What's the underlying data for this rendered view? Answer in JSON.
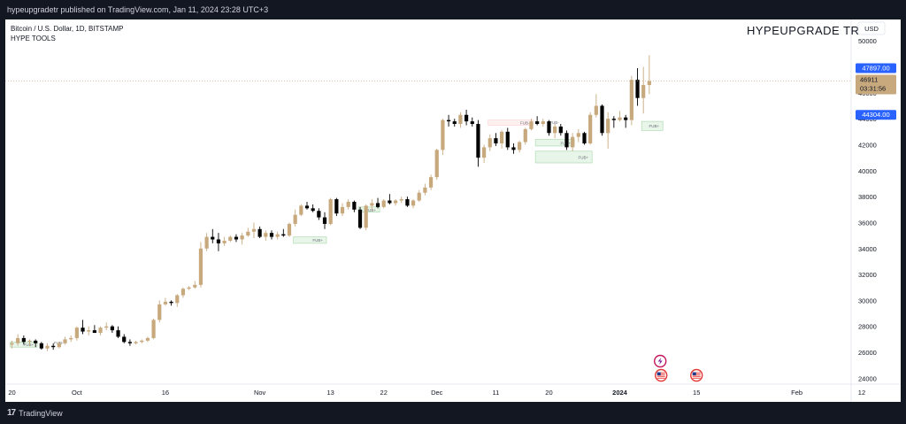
{
  "header": {
    "publish_line": "hypeupgradetr published on TradingView.com, Jan 11, 2024 23:28 UTC+3"
  },
  "legend": {
    "symbol_line": "Bitcoin / U.S. Dollar, 1D, BITSTAMP",
    "indicator_line": "HYPE TOOLS"
  },
  "watermark": "HYPEUPGRADE TR",
  "currency_button": "USD",
  "price_badges": {
    "high_label": "47897.00",
    "current_label": "46911",
    "countdown_label": "03:31:56",
    "low_label": "44304.00"
  },
  "footer": {
    "brand": "TradingView"
  },
  "colors": {
    "bull": "#c8a97e",
    "bear": "#000000",
    "accent_blue": "#2962ff",
    "current_price_bg": "#c8a97e",
    "fvg_fill": "#e8f5e9",
    "fvg_stroke": "#a5d6a7",
    "bearish_zone": "#ffcdd2"
  },
  "chart_data": {
    "type": "candlestick",
    "title": "Bitcoin / U.S. Dollar, 1D, BITSTAMP",
    "xlabel": "",
    "ylabel": "",
    "ylim": [
      23000,
      52000
    ],
    "y_ticks": [
      24000,
      26000,
      28000,
      30000,
      32000,
      34000,
      36000,
      38000,
      40000,
      42000,
      44000,
      46000,
      48000,
      50000
    ],
    "x_ticks": [
      {
        "day": 0,
        "label": "20"
      },
      {
        "day": 11,
        "label": "Oct"
      },
      {
        "day": 26,
        "label": "16"
      },
      {
        "day": 42,
        "label": "Nov"
      },
      {
        "day": 54,
        "label": "13"
      },
      {
        "day": 63,
        "label": "22"
      },
      {
        "day": 72,
        "label": "Dec"
      },
      {
        "day": 82,
        "label": "11"
      },
      {
        "day": 91,
        "label": "20"
      },
      {
        "day": 103,
        "label": "2024"
      },
      {
        "day": 116,
        "label": "15"
      },
      {
        "day": 133,
        "label": "Feb"
      },
      {
        "day": 144,
        "label": "12"
      }
    ],
    "x_tick_bold": "2024",
    "candles": [
      [
        26600,
        26900,
        26300,
        26700
      ],
      [
        26700,
        27400,
        26500,
        27100
      ],
      [
        27100,
        27300,
        26600,
        26800
      ],
      [
        26800,
        27000,
        26500,
        26900
      ],
      [
        26900,
        27000,
        26400,
        26700
      ],
      [
        26700,
        26800,
        26200,
        26300
      ],
      [
        26300,
        26700,
        26100,
        26500
      ],
      [
        26500,
        26700,
        26200,
        26400
      ],
      [
        26400,
        26800,
        26300,
        26700
      ],
      [
        26700,
        27200,
        26600,
        27000
      ],
      [
        27000,
        27300,
        26800,
        27100
      ],
      [
        27100,
        28000,
        26900,
        27900
      ],
      [
        27900,
        28500,
        27400,
        27600
      ],
      [
        27600,
        28000,
        27300,
        27700
      ],
      [
        27700,
        28100,
        27500,
        27500
      ],
      [
        27500,
        28000,
        27300,
        27900
      ],
      [
        27900,
        28300,
        27700,
        28000
      ],
      [
        28000,
        28100,
        27500,
        27700
      ],
      [
        27700,
        28000,
        27100,
        27200
      ],
      [
        27200,
        27400,
        26700,
        26800
      ],
      [
        26800,
        27000,
        26500,
        26700
      ],
      [
        26700,
        26900,
        26600,
        26800
      ],
      [
        26800,
        27000,
        26700,
        26900
      ],
      [
        26900,
        27200,
        26800,
        27100
      ],
      [
        27100,
        28600,
        27000,
        28500
      ],
      [
        28500,
        30000,
        28300,
        29700
      ],
      [
        29700,
        30200,
        29600,
        29900
      ],
      [
        29900,
        30000,
        29600,
        29800
      ],
      [
        29800,
        30500,
        29500,
        30400
      ],
      [
        30400,
        31000,
        30200,
        30900
      ],
      [
        30900,
        31100,
        30800,
        31000
      ],
      [
        31000,
        31500,
        30900,
        31200
      ],
      [
        31200,
        34500,
        31000,
        34000
      ],
      [
        34000,
        35200,
        33800,
        34900
      ],
      [
        34900,
        35500,
        34400,
        34700
      ],
      [
        34700,
        35200,
        33800,
        34400
      ],
      [
        34400,
        34900,
        34200,
        34600
      ],
      [
        34600,
        35000,
        34500,
        34900
      ],
      [
        34900,
        35100,
        34500,
        34700
      ],
      [
        34700,
        35200,
        34300,
        35000
      ],
      [
        35000,
        35600,
        34900,
        35300
      ],
      [
        35300,
        36000,
        34800,
        35500
      ],
      [
        35500,
        35700,
        34800,
        34900
      ],
      [
        34900,
        35400,
        34600,
        35200
      ],
      [
        35200,
        35400,
        34700,
        34900
      ],
      [
        34900,
        35300,
        34700,
        35100
      ],
      [
        35100,
        35500,
        34900,
        35000
      ],
      [
        35000,
        36000,
        34900,
        35900
      ],
      [
        35900,
        37000,
        35700,
        36600
      ],
      [
        36600,
        37400,
        36500,
        37300
      ],
      [
        37300,
        37600,
        37000,
        37100
      ],
      [
        37100,
        37400,
        36800,
        36900
      ],
      [
        36900,
        37100,
        36200,
        36400
      ],
      [
        36400,
        36800,
        35500,
        35900
      ],
      [
        35900,
        37900,
        35800,
        37800
      ],
      [
        37800,
        37900,
        36500,
        36700
      ],
      [
        36700,
        37500,
        36500,
        37200
      ],
      [
        37200,
        37800,
        37000,
        37600
      ],
      [
        37600,
        37700,
        36800,
        37000
      ],
      [
        37000,
        37200,
        35500,
        35600
      ],
      [
        35600,
        37400,
        35400,
        37300
      ],
      [
        37300,
        37800,
        37000,
        37500
      ],
      [
        37500,
        37900,
        37100,
        37200
      ],
      [
        37200,
        37800,
        37100,
        37700
      ],
      [
        37700,
        38200,
        37400,
        37500
      ],
      [
        37500,
        37800,
        37300,
        37700
      ],
      [
        37700,
        38000,
        37500,
        37800
      ],
      [
        37800,
        38000,
        37200,
        37300
      ],
      [
        37300,
        37800,
        37100,
        37700
      ],
      [
        37700,
        38500,
        37600,
        38300
      ],
      [
        38300,
        39000,
        38100,
        38700
      ],
      [
        38700,
        39700,
        38500,
        39500
      ],
      [
        39500,
        41700,
        39300,
        41600
      ],
      [
        41600,
        44000,
        41200,
        43900
      ],
      [
        43900,
        44300,
        43400,
        43800
      ],
      [
        43800,
        44000,
        43400,
        43600
      ],
      [
        43600,
        44500,
        43300,
        44300
      ],
      [
        44300,
        44700,
        43500,
        43800
      ],
      [
        43800,
        44100,
        43400,
        43600
      ],
      [
        43600,
        43900,
        40300,
        41000
      ],
      [
        41000,
        42000,
        40600,
        41800
      ],
      [
        41800,
        42800,
        41500,
        42500
      ],
      [
        42500,
        42900,
        41900,
        42100
      ],
      [
        42100,
        43100,
        41700,
        43000
      ],
      [
        43000,
        43300,
        41600,
        41800
      ],
      [
        41800,
        42100,
        41300,
        41600
      ],
      [
        41600,
        42300,
        41400,
        42200
      ],
      [
        42200,
        43300,
        42000,
        43200
      ],
      [
        43200,
        44000,
        43100,
        43800
      ],
      [
        43800,
        44200,
        43500,
        43600
      ],
      [
        43600,
        44000,
        43400,
        43800
      ],
      [
        43800,
        43900,
        42700,
        42900
      ],
      [
        42900,
        43600,
        42500,
        43400
      ],
      [
        43400,
        43600,
        42700,
        42900
      ],
      [
        42900,
        43100,
        41600,
        41800
      ],
      [
        41800,
        42900,
        41500,
        42600
      ],
      [
        42600,
        43200,
        42200,
        42900
      ],
      [
        42900,
        43000,
        42000,
        42100
      ],
      [
        42100,
        44500,
        42000,
        44300
      ],
      [
        44300,
        45900,
        44100,
        45000
      ],
      [
        45000,
        45100,
        42700,
        42900
      ],
      [
        42900,
        44500,
        41700,
        44000
      ],
      [
        44000,
        44200,
        43300,
        43900
      ],
      [
        43900,
        44600,
        43800,
        44100
      ],
      [
        44100,
        44300,
        43300,
        43900
      ],
      [
        43900,
        47300,
        43500,
        47000
      ],
      [
        47000,
        47900,
        45000,
        45600
      ],
      [
        45600,
        48000,
        44400,
        46600
      ],
      [
        46600,
        48900,
        45900,
        46900
      ]
    ],
    "fvg_zones": [
      {
        "day_start": 0,
        "day_end": 4,
        "y_low": 26400,
        "y_high": 26800,
        "label": "FUB+",
        "kind": "bull"
      },
      {
        "day_start": 7,
        "day_end": 9,
        "y_low": 26600,
        "y_high": 26900,
        "label": "FUB-",
        "kind": "plain"
      },
      {
        "day_start": 48,
        "day_end": 53,
        "y_low": 34400,
        "y_high": 34900,
        "label": "FUB+",
        "kind": "bull"
      },
      {
        "day_start": 59,
        "day_end": 62,
        "y_low": 36800,
        "y_high": 37200,
        "label": "FUB+",
        "kind": "bull"
      },
      {
        "day_start": 81,
        "day_end": 88,
        "y_low": 43500,
        "y_high": 43900,
        "label": "FUB-",
        "kind": "bear"
      },
      {
        "day_start": 89,
        "day_end": 93,
        "y_low": 43600,
        "y_high": 43900,
        "label": "FUB-",
        "kind": "plain"
      },
      {
        "day_start": 89,
        "day_end": 95,
        "y_low": 41900,
        "y_high": 42400,
        "label": "FUB+",
        "kind": "bull"
      },
      {
        "day_start": 89,
        "day_end": 98,
        "y_low": 40600,
        "y_high": 41500,
        "label": "FUB+",
        "kind": "bull"
      },
      {
        "day_start": 107,
        "day_end": 110,
        "y_low": 43100,
        "y_high": 43800,
        "label": "FUB+",
        "kind": "bull"
      }
    ],
    "current_price": 46911,
    "marked_high": 47897.0,
    "marked_low": 44304.0,
    "event_icons": [
      {
        "day": 110,
        "kind": "lightning-icon",
        "row": 1
      },
      {
        "day": 110,
        "kind": "us-flag-icon",
        "row": 2
      },
      {
        "day": 116,
        "kind": "us-flag-icon",
        "row": 2
      }
    ]
  }
}
